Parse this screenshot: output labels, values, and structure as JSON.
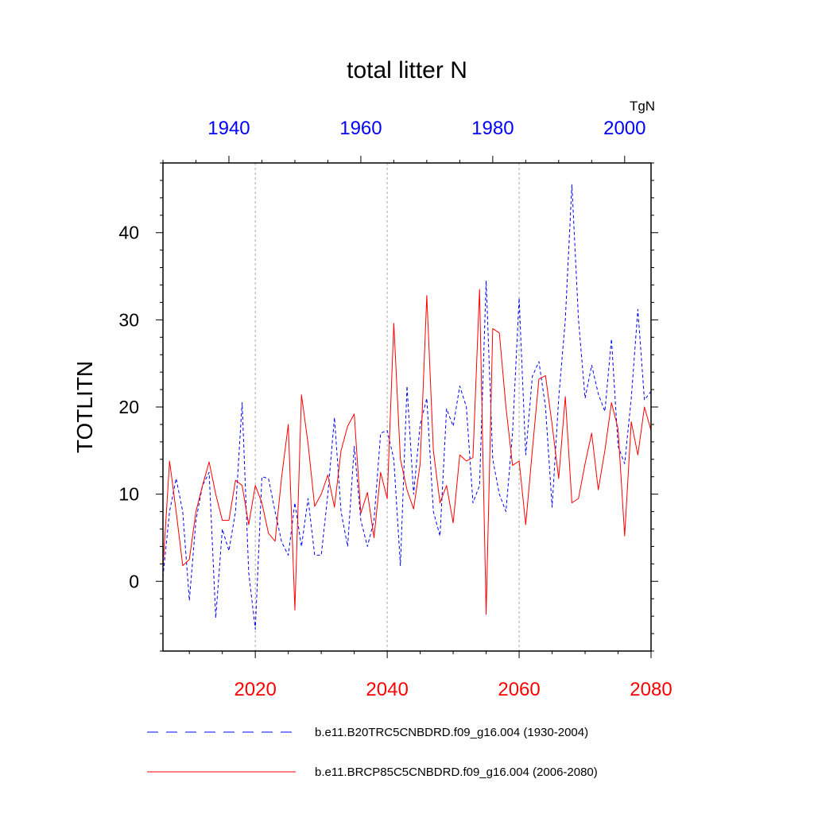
{
  "chart_data": {
    "type": "line",
    "title": "total litter N",
    "units": "TgN",
    "ylabel": "TOTLITN",
    "ylim": [
      -8,
      48
    ],
    "yticks": [
      0,
      10,
      20,
      30,
      40
    ],
    "bottom_axis": {
      "range": [
        2006,
        2080
      ],
      "ticks": [
        2020,
        2040,
        2060,
        2080
      ],
      "color": "#ff0000"
    },
    "top_axis": {
      "range": [
        1930,
        2004
      ],
      "ticks": [
        1940,
        1960,
        1980,
        2000
      ],
      "color": "#0000ff"
    },
    "grid_x": [
      2020,
      2040,
      2060
    ],
    "series": [
      {
        "name": "b.e11.B20TRC5CNBDRD.f09_g16.004 (1930-2004)",
        "axis": "top",
        "color": "#0000ff",
        "dash": "dashed",
        "start_year": 1930,
        "values": [
          0.5,
          8,
          11.8,
          8,
          -2.2,
          7,
          11,
          12.5,
          -4.2,
          6,
          3.5,
          8,
          20.5,
          1,
          -5.5,
          12,
          11.8,
          8,
          4.5,
          3,
          9,
          4,
          9.5,
          3,
          3,
          10,
          18.8,
          8,
          4,
          15.5,
          7,
          4,
          7,
          17,
          17.3,
          14,
          1.8,
          22.4,
          10,
          18,
          21,
          8,
          5.2,
          19.8,
          17.8,
          22.4,
          20,
          9,
          11,
          34.5,
          14,
          10,
          8,
          17,
          32.5,
          14.5,
          23.5,
          25.2,
          20,
          8.5,
          21,
          30,
          45.5,
          30,
          21,
          24.8,
          21.5,
          19.5,
          27.8,
          15.5,
          13.5,
          21,
          31.2,
          20.8,
          21.8
        ]
      },
      {
        "name": "b.e11.BRCP85C5CNBDRD.f09_g16.004 (2006-2080)",
        "axis": "bottom",
        "color": "#ff0000",
        "dash": "solid",
        "start_year": 2006,
        "values": [
          1.5,
          13.8,
          8,
          1.8,
          2.5,
          8,
          11,
          13.7,
          10,
          7,
          7,
          11.6,
          11,
          6.5,
          11,
          9,
          5.5,
          4.6,
          12,
          18,
          -3.3,
          21.4,
          15.8,
          8.6,
          10,
          12.2,
          8.5,
          15,
          17.8,
          19.2,
          7.8,
          10.2,
          5,
          12.5,
          9.5,
          29.6,
          14,
          10.5,
          8.3,
          13.5,
          32.8,
          15,
          9,
          11,
          6.7,
          14.5,
          13.8,
          14.2,
          33.5,
          -3.8,
          29,
          28.5,
          20,
          13.3,
          13.8,
          6.5,
          15,
          23.2,
          23.6,
          18,
          11.8,
          21.2,
          9,
          9.5,
          13.5,
          17,
          10.5,
          15,
          20.5,
          17.5,
          5.2,
          18.3,
          14.5,
          20,
          17.3
        ]
      }
    ]
  }
}
